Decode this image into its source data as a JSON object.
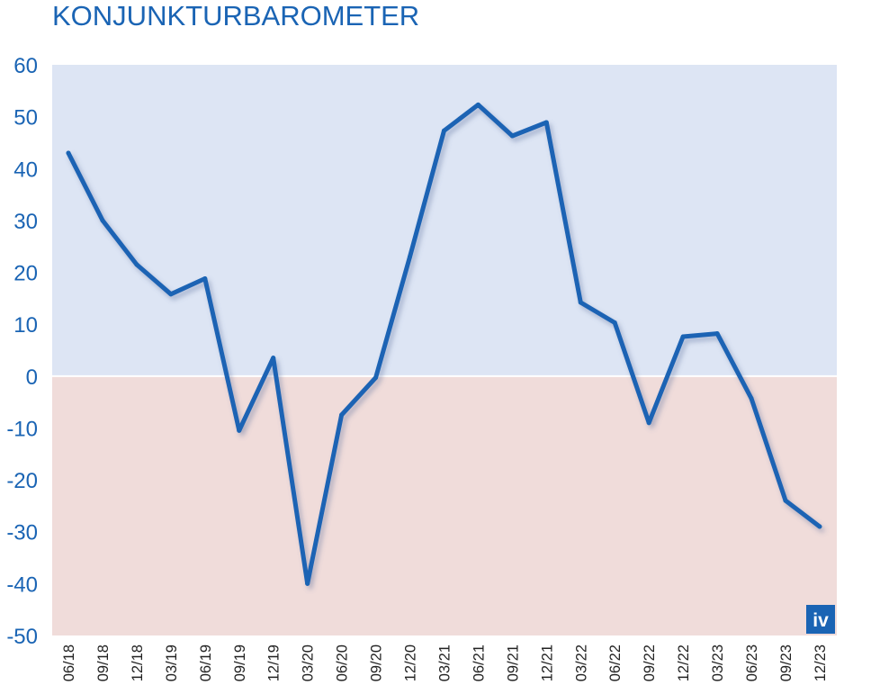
{
  "chart_data": {
    "type": "line",
    "title": "KONJUNKTURBAROMETER",
    "xlabel": "",
    "ylabel": "",
    "ylim": [
      -50,
      60
    ],
    "yticks": [
      60,
      50,
      40,
      30,
      20,
      10,
      0,
      -10,
      -20,
      -30,
      -40,
      -50
    ],
    "grid": false,
    "legend": "none",
    "background_bands": {
      "positive_color": "#dde5f4",
      "negative_color": "#f0dcda"
    },
    "line_color": "#1a64b4",
    "text_color": "#1a64b4",
    "categories": [
      "06/18",
      "09/18",
      "12/18",
      "03/19",
      "06/19",
      "09/19",
      "12/19",
      "03/20",
      "06/20",
      "09/20",
      "12/20",
      "03/21",
      "06/21",
      "09/21",
      "12/21",
      "03/22",
      "06/22",
      "09/22",
      "12/22",
      "03/23",
      "06/23",
      "09/23",
      "12/23"
    ],
    "series": [
      {
        "values": [
          43,
          30,
          21.5,
          15.8,
          18.8,
          -10.5,
          3.5,
          -40,
          -7.5,
          -0.3,
          23,
          47.3,
          52.3,
          46.3,
          48.9,
          14.2,
          10.3,
          -9,
          7.6,
          8.2,
          -4.3,
          -24,
          -29
        ]
      }
    ],
    "logo": {
      "text": "iv",
      "color": "#1a64b4"
    }
  }
}
